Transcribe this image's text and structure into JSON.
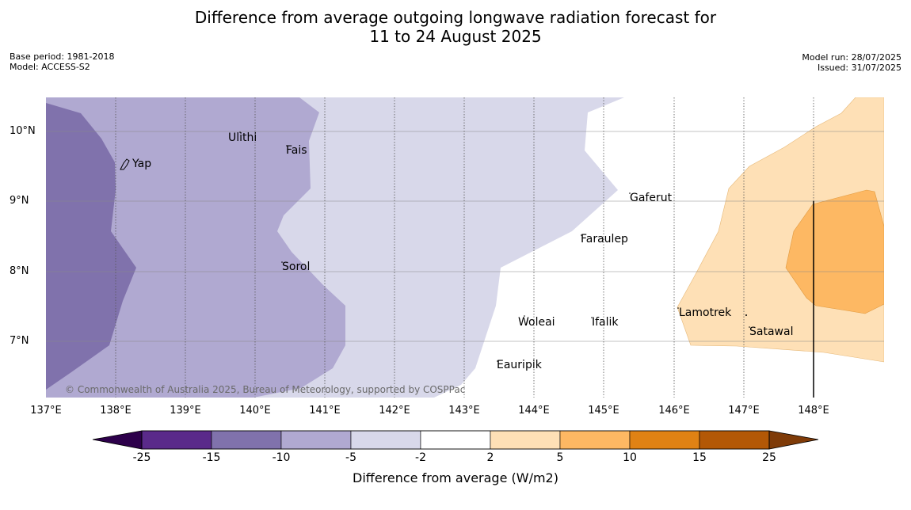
{
  "title_line1": "Difference from average outgoing longwave radiation forecast for",
  "title_line2": "11 to 24 August 2025",
  "meta_left": {
    "base_period": "Base period: 1981-2018",
    "model": "Model: ACCESS-S2"
  },
  "meta_right": {
    "model_run": "Model run: 28/07/2025",
    "issued": "Issued: 31/07/2025"
  },
  "copyright": "© Commonwealth of Australia 2025, Bureau of Meteorology, supported by COSPPac",
  "lat_labels": [
    "10°N",
    "9°N",
    "8°N",
    "7°N"
  ],
  "lon_labels": [
    "137°E",
    "138°E",
    "139°E",
    "140°E",
    "141°E",
    "142°E",
    "143°E",
    "144°E",
    "145°E",
    "146°E",
    "147°E",
    "148°E"
  ],
  "places": {
    "ulithi": "Ulithi",
    "fais": "Fais",
    "yap": "Yap",
    "gaferut": "Gaferut",
    "faraulep": "Faraulep",
    "sorol": "Sorol",
    "woleai": "Woleai",
    "ifalik": "Ifalik",
    "lamotrek": "Lamotrek",
    "satawal": "Satawal",
    "eauripik": "Eauripik"
  },
  "colorbar": {
    "title": "Difference from average (W/m2)",
    "ticks": [
      "-25",
      "-15",
      "-10",
      "-5",
      "-2",
      "2",
      "5",
      "10",
      "15",
      "25"
    ],
    "colors": [
      "#5a2a8a",
      "#8072ac",
      "#b0a9d1",
      "#d8d8ea",
      "#ffffff",
      "#fee0b6",
      "#fdb863",
      "#e08214",
      "#b35806"
    ],
    "extend_low": "#2d004b",
    "extend_high": "#7f3b08"
  }
}
